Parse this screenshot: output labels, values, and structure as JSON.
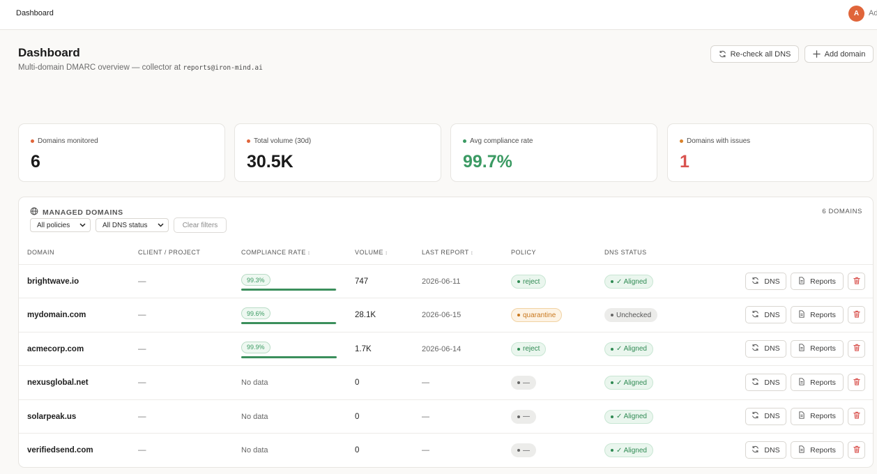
{
  "topbar": {
    "breadcrumb": "Dashboard",
    "avatar_initial": "A",
    "user_label": "Ad"
  },
  "header": {
    "title": "Dashboard",
    "subtitle": "Multi-domain DMARC overview — collector at",
    "collector_email": "reports@iron-mind.ai",
    "recheck_label": "Re-check all DNS",
    "add_label": "Add domain"
  },
  "stats": [
    {
      "label": "Domains monitored",
      "value": "6",
      "dot_color": "#e0653a",
      "value_color": "#1a1a1a"
    },
    {
      "label": "Total volume (30d)",
      "value": "30.5K",
      "dot_color": "#e0653a",
      "value_color": "#1a1a1a"
    },
    {
      "label": "Avg compliance rate",
      "value": "99.7%",
      "dot_color": "#3b9a63",
      "value_color": "#3b9a63"
    },
    {
      "label": "Domains with issues",
      "value": "1",
      "dot_color": "#d9822b",
      "value_color": "#d9534f"
    }
  ],
  "panel": {
    "title": "MANAGED DOMAINS",
    "count": "6 DOMAINS",
    "policy_filter": "All policies",
    "dns_filter": "All DNS status",
    "clear_label": "Clear filters",
    "columns": {
      "domain": "DOMAIN",
      "client": "CLIENT / PROJECT",
      "compliance": "COMPLIANCE RATE",
      "volume": "VOLUME",
      "last_report": "LAST REPORT",
      "policy": "POLICY",
      "dns": "DNS STATUS"
    },
    "action_dns": "DNS",
    "action_reports": "Reports"
  },
  "rows": [
    {
      "domain": "brightwave.io",
      "client": "—",
      "compliance": "99.3%",
      "compliance_pct": 99.3,
      "volume": "747",
      "last_report": "2026-06-11",
      "policy": "reject",
      "policy_style": "green",
      "dns": "✓ Aligned",
      "dns_style": "green"
    },
    {
      "domain": "mydomain.com",
      "client": "—",
      "compliance": "99.6%",
      "compliance_pct": 99.6,
      "volume": "28.1K",
      "last_report": "2026-06-15",
      "policy": "quarantine",
      "policy_style": "orange",
      "dns": "Unchecked",
      "dns_style": "gray"
    },
    {
      "domain": "acmecorp.com",
      "client": "—",
      "compliance": "99.9%",
      "compliance_pct": 99.9,
      "volume": "1.7K",
      "last_report": "2026-06-14",
      "policy": "reject",
      "policy_style": "green",
      "dns": "✓ Aligned",
      "dns_style": "green"
    },
    {
      "domain": "nexusglobal.net",
      "client": "—",
      "compliance": "No data",
      "compliance_pct": null,
      "volume": "0",
      "last_report": "—",
      "policy": "—",
      "policy_style": "gray",
      "dns": "✓ Aligned",
      "dns_style": "green"
    },
    {
      "domain": "solarpeak.us",
      "client": "—",
      "compliance": "No data",
      "compliance_pct": null,
      "volume": "0",
      "last_report": "—",
      "policy": "—",
      "policy_style": "gray",
      "dns": "✓ Aligned",
      "dns_style": "green"
    },
    {
      "domain": "verifiedsend.com",
      "client": "—",
      "compliance": "No data",
      "compliance_pct": null,
      "volume": "0",
      "last_report": "—",
      "policy": "—",
      "policy_style": "gray",
      "dns": "✓ Aligned",
      "dns_style": "green"
    }
  ]
}
